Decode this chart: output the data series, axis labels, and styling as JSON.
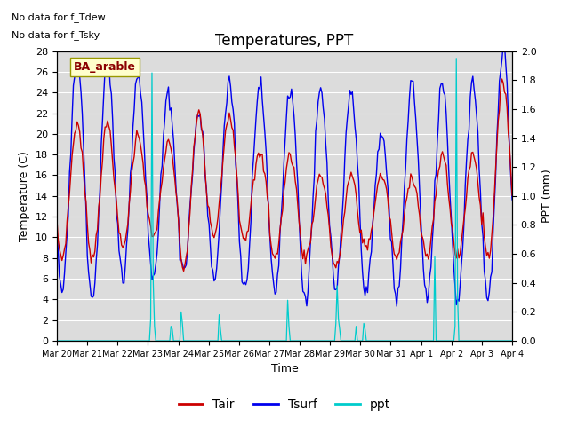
{
  "title": "Temperatures, PPT",
  "xlabel": "Time",
  "ylabel_left": "Temperature (C)",
  "ylabel_right": "PPT (mm)",
  "ylim_left": [
    0,
    28
  ],
  "ylim_right": [
    0.0,
    2.0
  ],
  "bg_color": "#dcdcdc",
  "tair_color": "#cc0000",
  "tsurf_color": "#0000ee",
  "ppt_color": "#00cccc",
  "legend_labels": [
    "Tair",
    "Tsurf",
    "ppt"
  ],
  "annotation1": "No data for f_Tdew",
  "annotation2": "No data for f_Tsky",
  "site_label": "BA_arable",
  "xtick_labels": [
    "Mar 20",
    "Mar 21",
    "Mar 22",
    "Mar 23",
    "Mar 24",
    "Mar 25",
    "Mar 26",
    "Mar 27",
    "Mar 28",
    "Mar 29",
    "Mar 30",
    "Mar 31",
    "Apr 1",
    "Apr 2",
    "Apr 3",
    "Apr 4"
  ],
  "yticks_left": [
    0,
    2,
    4,
    6,
    8,
    10,
    12,
    14,
    16,
    18,
    20,
    22,
    24,
    26,
    28
  ],
  "yticks_right": [
    0.0,
    0.2,
    0.4,
    0.6,
    0.8,
    1.0,
    1.2,
    1.4,
    1.6,
    1.8,
    2.0
  ],
  "figsize": [
    6.4,
    4.8
  ],
  "dpi": 100
}
